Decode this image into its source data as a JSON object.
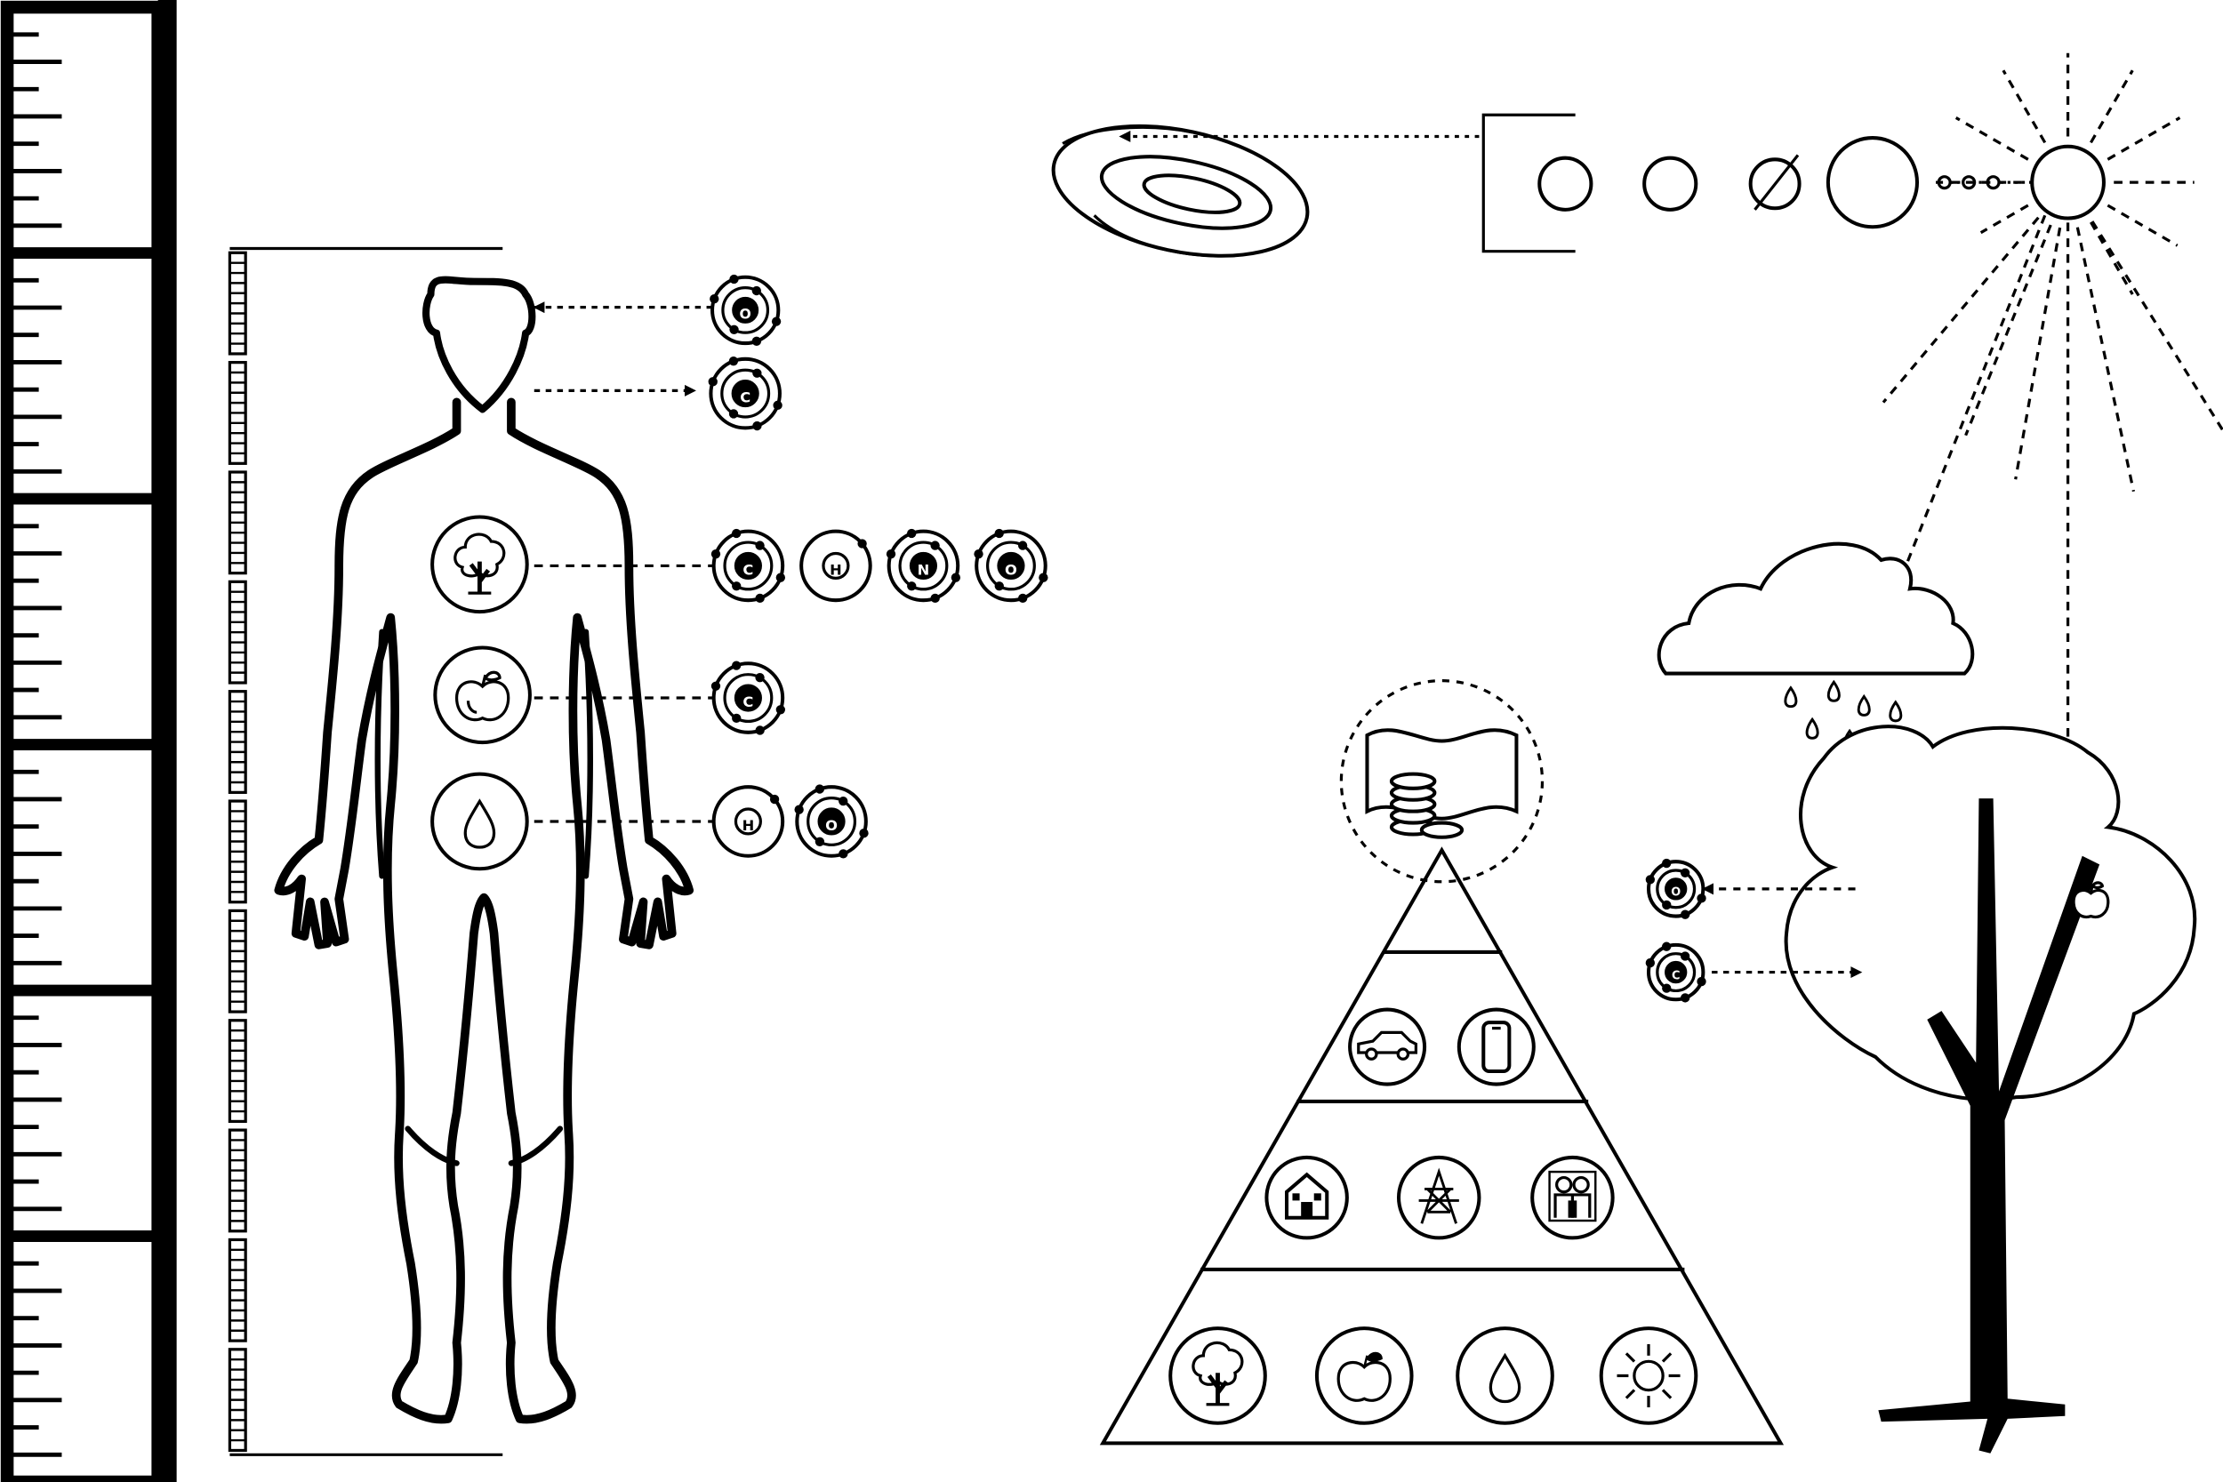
{
  "palette": {
    "ink": "#000000",
    "paper": "#ffffff"
  },
  "ruler": {
    "segments": 6,
    "minor_ticks_per_segment": 8
  },
  "body_scale": {
    "cells": 11
  },
  "human": {
    "inhaled": [
      "O"
    ],
    "exhaled": [
      "C"
    ],
    "organ_rows": [
      {
        "icon": "tree-icon",
        "atoms": [
          "C",
          "H",
          "N",
          "O"
        ]
      },
      {
        "icon": "apple-icon",
        "atoms": [
          "C"
        ]
      },
      {
        "icon": "water-drop-icon",
        "atoms": [
          "H",
          "O"
        ]
      }
    ]
  },
  "cosmos": {
    "galaxy": "spiral-galaxy-icon",
    "planets": [
      "planet-circle",
      "planet-circle",
      "planet-crossed-circle",
      "planet-large-circle"
    ],
    "sun": "sun-icon"
  },
  "pyramid": {
    "apex": "money-coins-icon",
    "tiers": [
      {
        "level": 2,
        "icons": [
          "car-icon",
          "smartphone-icon"
        ]
      },
      {
        "level": 3,
        "icons": [
          "house-icon",
          "power-tower-icon",
          "family-icon"
        ]
      },
      {
        "level": 4,
        "icons": [
          "tree-icon",
          "apple-icon",
          "water-drop-icon",
          "sun-icon"
        ]
      }
    ]
  },
  "tree_exchange": {
    "released": [
      "O"
    ],
    "absorbed": [
      "C"
    ]
  }
}
